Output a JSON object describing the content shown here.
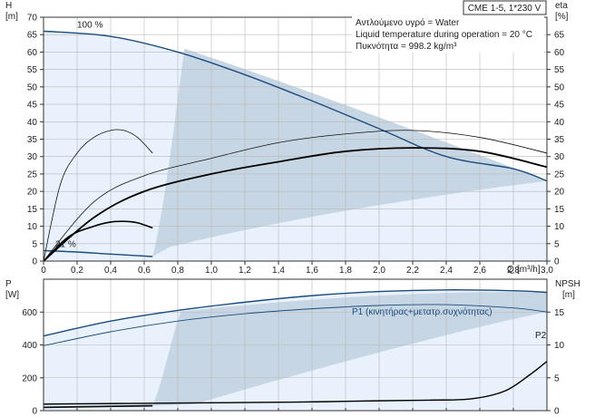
{
  "chart_data": [
    {
      "type": "line",
      "title": "CME 1-5, 1*230 V",
      "notes": [
        "Αντλούμενο υγρό = Water",
        "Liquid temperature during operation = 20 °C",
        "Πυκνότητα = 998.2 kg/m³"
      ],
      "ylabel": "H",
      "yunit": "[m]",
      "y2label": "eta",
      "y2unit": "[%]",
      "xlabel": "Q",
      "xunit": "[m³/h]",
      "xlim": [
        0,
        3.0
      ],
      "ylim": [
        0,
        70
      ],
      "y2lim": [
        0,
        70
      ],
      "x_ticks": [
        "0",
        "0,2",
        "0,4",
        "0,6",
        "0,8",
        "1,0",
        "1,2",
        "1,4",
        "1,6",
        "1,8",
        "2,0",
        "2,2",
        "2,4",
        "2,6",
        "2,8",
        "3,0"
      ],
      "y_ticks": [
        "0",
        "5",
        "10",
        "15",
        "20",
        "25",
        "30",
        "35",
        "40",
        "45",
        "50",
        "55",
        "60",
        "65",
        "70"
      ],
      "y2_ticks": [
        "0",
        "5",
        "10",
        "15",
        "20",
        "25",
        "30",
        "35",
        "40",
        "45",
        "50",
        "55",
        "60",
        "65"
      ],
      "grid": true,
      "colors": {
        "fill": "#c7d6e4",
        "fill_light": "#e9f2fc",
        "curve_dark": "#1c4c7c",
        "curve_black": "#000000"
      },
      "labels": [
        {
          "text": "100 %",
          "x": 0.2,
          "y": 67
        },
        {
          "text": "21 %",
          "x": 0.07,
          "y": 4
        }
      ],
      "series": [
        {
          "role": "H max speed",
          "x": [
            0,
            0.4,
            0.8,
            1.2,
            1.6,
            2.0,
            2.4,
            2.8,
            3.0
          ],
          "y": [
            66,
            64.5,
            60,
            53.5,
            46,
            38,
            30,
            26.5,
            23
          ]
        },
        {
          "role": "H min speed",
          "x": [
            0,
            0.2,
            0.4,
            0.65
          ],
          "y": [
            3,
            2.6,
            2.0,
            1.3
          ]
        },
        {
          "role": "H system",
          "x": [
            0.75,
            1.0,
            1.5,
            2.0,
            2.5,
            3.0
          ],
          "y": [
            4,
            6.5,
            11.5,
            16,
            20,
            23
          ]
        },
        {
          "role": "eta 100%",
          "x": [
            0,
            0.3,
            0.6,
            1.0,
            1.4,
            1.8,
            2.2,
            2.6,
            3.0
          ],
          "y": [
            0,
            17,
            24.5,
            29.5,
            34,
            36.5,
            37.5,
            35.5,
            31
          ]
        },
        {
          "role": "eta pump",
          "x": [
            0,
            0.3,
            0.6,
            1.0,
            1.4,
            1.8,
            2.2,
            2.6,
            3.0
          ],
          "y": [
            0,
            12.5,
            20,
            25,
            28.5,
            31.5,
            32.5,
            31.5,
            27
          ]
        },
        {
          "role": "eta 21% a",
          "x": [
            0,
            0.1,
            0.2,
            0.3,
            0.4,
            0.48,
            0.56,
            0.65
          ],
          "y": [
            0,
            22,
            31,
            35.5,
            37.5,
            37.5,
            35.5,
            31
          ]
        },
        {
          "role": "eta 21% b",
          "x": [
            0,
            0.15,
            0.3,
            0.4,
            0.48,
            0.56,
            0.65
          ],
          "y": [
            0,
            7,
            10,
            11.2,
            11.4,
            11,
            9.5
          ]
        }
      ]
    },
    {
      "type": "line",
      "ylabel": "P",
      "yunit": "[W]",
      "y2label": "NPSH",
      "y2unit": "[m]",
      "xlim": [
        0,
        3.0
      ],
      "ylim": [
        0,
        800
      ],
      "y2lim": [
        0,
        20
      ],
      "y_ticks": [
        "0",
        "200",
        "400",
        "600"
      ],
      "y2_ticks": [
        "0",
        "5",
        "10",
        "15"
      ],
      "grid": true,
      "series": [
        {
          "name": "P1 (κινητήρας+μετατρ.συχνότητας)",
          "x": [
            0,
            0.4,
            0.8,
            1.2,
            1.6,
            2.0,
            2.4,
            2.8,
            3.0
          ],
          "y": [
            455,
            545,
            610,
            660,
            700,
            725,
            735,
            730,
            720
          ]
        },
        {
          "name": "P2",
          "x": [
            0,
            0.4,
            0.8,
            1.2,
            1.6,
            2.0,
            2.4,
            2.8,
            3.0
          ],
          "y": [
            395,
            480,
            545,
            590,
            620,
            640,
            645,
            625,
            600
          ]
        },
        {
          "role": "NPSH",
          "x": [
            0,
            0.5,
            1.0,
            1.5,
            2.0,
            2.3,
            2.55,
            2.75,
            2.9,
            3.0
          ],
          "y2": [
            1.0,
            1.1,
            1.2,
            1.3,
            1.5,
            1.6,
            1.8,
            3.0,
            5.5,
            7.5
          ]
        },
        {
          "role": "P min speed",
          "x": [
            0,
            0.3,
            0.65
          ],
          "y": [
            20,
            25,
            30
          ]
        }
      ]
    }
  ]
}
